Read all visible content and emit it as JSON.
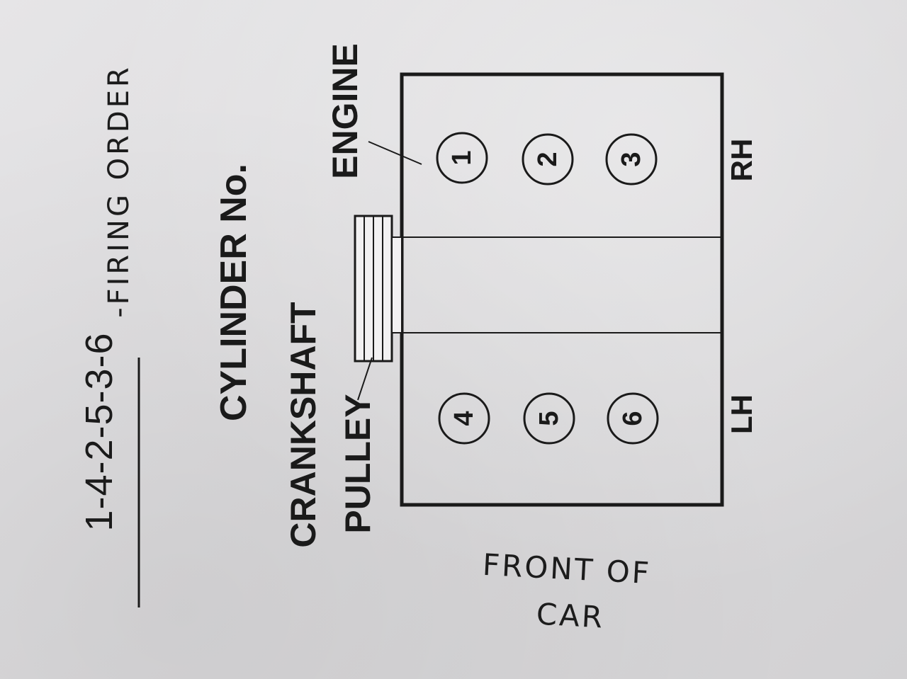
{
  "title": "1-4-2-5-3-6",
  "handwritten_note": "-FIRING ORDER",
  "labels": {
    "cylinder_no": "CYLINDER No.",
    "crankshaft": "CRANKSHAFT",
    "pulley": "PULLEY",
    "engine": "ENGINE",
    "rh": "RH",
    "lh": "LH"
  },
  "handwritten_front": "FRONT OF",
  "handwritten_car": "CAR",
  "cylinders": {
    "rh": [
      "1",
      "2",
      "3"
    ],
    "lh": [
      "4",
      "5",
      "6"
    ]
  }
}
